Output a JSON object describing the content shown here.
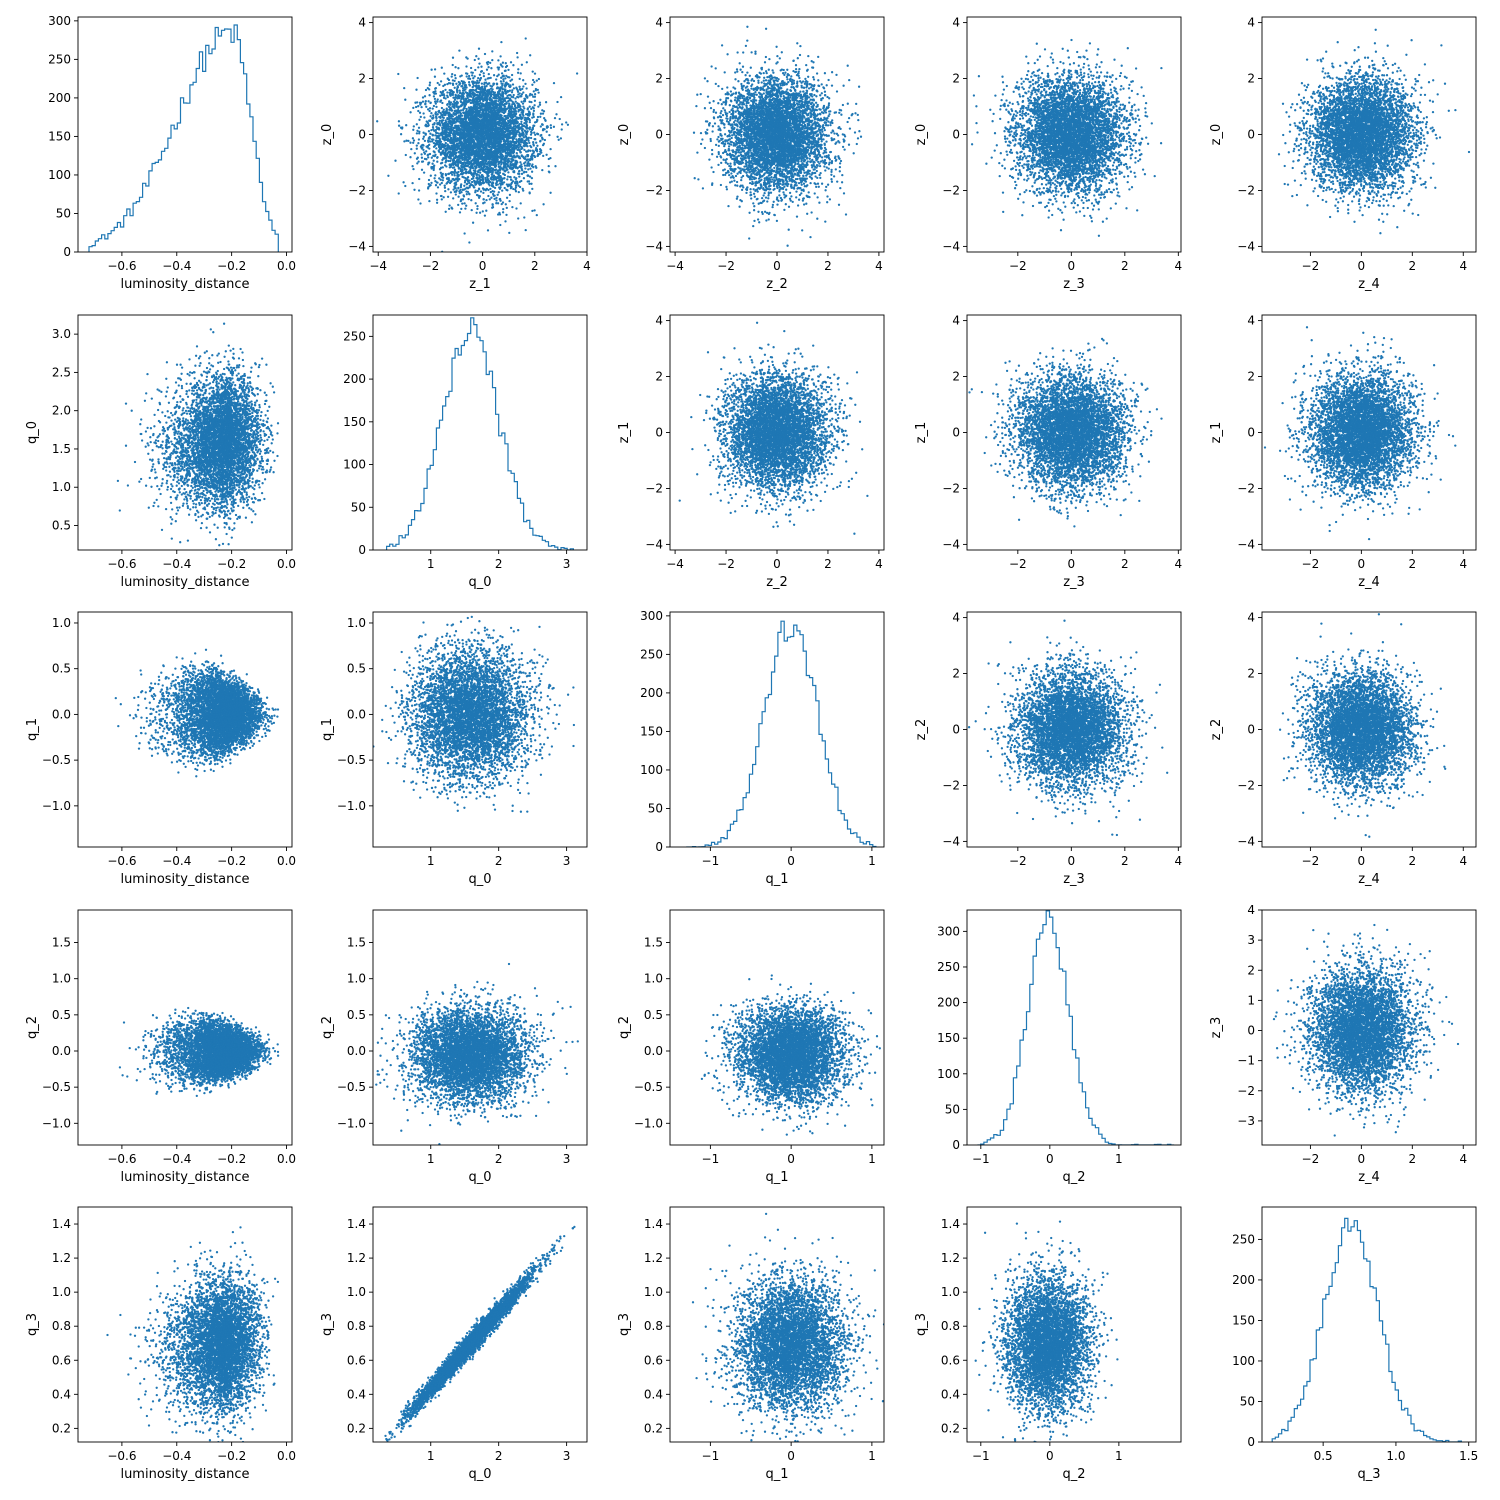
{
  "figure": {
    "type": "corner-pair-plot",
    "marker_color": "#1f77b4",
    "axes_color": "#000000",
    "background": "#ffffff"
  },
  "chart_data": [
    {
      "type": "histogram",
      "panel": "r0c0",
      "xlabel": "luminosity_distance",
      "ylabel": "",
      "xlim": [
        -0.76,
        0.02
      ],
      "ylim": [
        0,
        305
      ],
      "xticks": [
        -0.6,
        -0.4,
        -0.2,
        0.0
      ],
      "xtick_labels": [
        "−0.6",
        "−0.4",
        "−0.2",
        "0.0"
      ],
      "yticks": [
        0,
        50,
        100,
        150,
        200,
        250,
        300
      ],
      "ytick_labels": [
        "0",
        "50",
        "100",
        "150",
        "200",
        "250",
        "300"
      ],
      "dist": {
        "kind": "skewleft",
        "lo": -0.72,
        "hi": -0.03,
        "mode": -0.2,
        "peak": 285
      }
    },
    {
      "type": "scatter",
      "panel": "r0c1",
      "xlabel": "z_1",
      "ylabel": "z_0",
      "xlim": [
        -4.2,
        4.0
      ],
      "ylim": [
        -4.2,
        4.2
      ],
      "xticks": [
        -4,
        -2,
        0,
        2,
        4
      ],
      "xtick_labels": [
        "−4",
        "−2",
        "0",
        "2",
        "4"
      ],
      "yticks": [
        -4,
        -2,
        0,
        2,
        4
      ],
      "ytick_labels": [
        "−4",
        "−2",
        "0",
        "2",
        "4"
      ],
      "dist": {
        "kind": "gauss2d",
        "mx": 0,
        "my": 0,
        "sx": 1,
        "sy": 1
      }
    },
    {
      "type": "scatter",
      "panel": "r0c2",
      "xlabel": "z_2",
      "ylabel": "z_0",
      "xlim": [
        -4.2,
        4.2
      ],
      "ylim": [
        -4.2,
        4.2
      ],
      "xticks": [
        -4,
        -2,
        0,
        2,
        4
      ],
      "xtick_labels": [
        "−4",
        "−2",
        "0",
        "2",
        "4"
      ],
      "yticks": [
        -4,
        -2,
        0,
        2,
        4
      ],
      "ytick_labels": [
        "−4",
        "−2",
        "0",
        "2",
        "4"
      ],
      "dist": {
        "kind": "gauss2d",
        "mx": 0,
        "my": 0,
        "sx": 1,
        "sy": 1
      }
    },
    {
      "type": "scatter",
      "panel": "r0c3",
      "xlabel": "z_3",
      "ylabel": "z_0",
      "xlim": [
        -3.9,
        4.1
      ],
      "ylim": [
        -4.2,
        4.2
      ],
      "xticks": [
        -2,
        0,
        2,
        4
      ],
      "xtick_labels": [
        "−2",
        "0",
        "2",
        "4"
      ],
      "yticks": [
        -4,
        -2,
        0,
        2,
        4
      ],
      "ytick_labels": [
        "−4",
        "−2",
        "0",
        "2",
        "4"
      ],
      "dist": {
        "kind": "gauss2d",
        "mx": 0,
        "my": 0,
        "sx": 1,
        "sy": 1
      }
    },
    {
      "type": "scatter",
      "panel": "r0c4",
      "xlabel": "z_4",
      "ylabel": "z_0",
      "xlim": [
        -3.9,
        4.5
      ],
      "ylim": [
        -4.2,
        4.2
      ],
      "xticks": [
        -2,
        0,
        2,
        4
      ],
      "xtick_labels": [
        "−2",
        "0",
        "2",
        "4"
      ],
      "yticks": [
        -4,
        -2,
        0,
        2,
        4
      ],
      "ytick_labels": [
        "−4",
        "−2",
        "0",
        "2",
        "4"
      ],
      "dist": {
        "kind": "gauss2d",
        "mx": 0,
        "my": 0,
        "sx": 1,
        "sy": 1
      }
    },
    {
      "type": "scatter",
      "panel": "r1c0",
      "xlabel": "luminosity_distance",
      "ylabel": "q_0",
      "xlim": [
        -0.76,
        0.02
      ],
      "ylim": [
        0.18,
        3.25
      ],
      "xticks": [
        -0.6,
        -0.4,
        -0.2,
        0.0
      ],
      "xtick_labels": [
        "−0.6",
        "−0.4",
        "−0.2",
        "0.0"
      ],
      "yticks": [
        0.5,
        1.0,
        1.5,
        2.0,
        2.5,
        3.0
      ],
      "ytick_labels": [
        "0.5",
        "1.0",
        "1.5",
        "2.0",
        "2.5",
        "3.0"
      ],
      "dist": {
        "kind": "lumq0"
      }
    },
    {
      "type": "histogram",
      "panel": "r1c1",
      "xlabel": "q_0",
      "ylabel": "",
      "xlim": [
        0.15,
        3.3
      ],
      "ylim": [
        0,
        275
      ],
      "xticks": [
        1,
        2,
        3
      ],
      "xtick_labels": [
        "1",
        "2",
        "3"
      ],
      "yticks": [
        0,
        50,
        100,
        150,
        200,
        250
      ],
      "ytick_labels": [
        "0",
        "50",
        "100",
        "150",
        "200",
        "250"
      ],
      "dist": {
        "kind": "gauss",
        "lo": 0.35,
        "hi": 3.1,
        "mu": 1.58,
        "sigma": 0.42,
        "peak": 255
      }
    },
    {
      "type": "scatter",
      "panel": "r1c2",
      "xlabel": "z_2",
      "ylabel": "z_1",
      "xlim": [
        -4.2,
        4.2
      ],
      "ylim": [
        -4.2,
        4.2
      ],
      "xticks": [
        -4,
        -2,
        0,
        2,
        4
      ],
      "xtick_labels": [
        "−4",
        "−2",
        "0",
        "2",
        "4"
      ],
      "yticks": [
        -4,
        -2,
        0,
        2,
        4
      ],
      "ytick_labels": [
        "−4",
        "−2",
        "0",
        "2",
        "4"
      ],
      "dist": {
        "kind": "gauss2d",
        "mx": 0,
        "my": 0,
        "sx": 1,
        "sy": 1
      }
    },
    {
      "type": "scatter",
      "panel": "r1c3",
      "xlabel": "z_3",
      "ylabel": "z_1",
      "xlim": [
        -3.9,
        4.1
      ],
      "ylim": [
        -4.2,
        4.2
      ],
      "xticks": [
        -2,
        0,
        2,
        4
      ],
      "xtick_labels": [
        "−2",
        "0",
        "2",
        "4"
      ],
      "yticks": [
        -4,
        -2,
        0,
        2,
        4
      ],
      "ytick_labels": [
        "−4",
        "−2",
        "0",
        "2",
        "4"
      ],
      "dist": {
        "kind": "gauss2d",
        "mx": 0,
        "my": 0,
        "sx": 1,
        "sy": 1
      }
    },
    {
      "type": "scatter",
      "panel": "r1c4",
      "xlabel": "z_4",
      "ylabel": "z_1",
      "xlim": [
        -3.9,
        4.5
      ],
      "ylim": [
        -4.2,
        4.2
      ],
      "xticks": [
        -2,
        0,
        2,
        4
      ],
      "xtick_labels": [
        "−2",
        "0",
        "2",
        "4"
      ],
      "yticks": [
        -4,
        -2,
        0,
        2,
        4
      ],
      "ytick_labels": [
        "−4",
        "−2",
        "0",
        "2",
        "4"
      ],
      "dist": {
        "kind": "gauss2d",
        "mx": 0,
        "my": 0,
        "sx": 1,
        "sy": 1
      }
    },
    {
      "type": "scatter",
      "panel": "r2c0",
      "xlabel": "luminosity_distance",
      "ylabel": "q_1",
      "xlim": [
        -0.76,
        0.02
      ],
      "ylim": [
        -1.45,
        1.12
      ],
      "xticks": [
        -0.6,
        -0.4,
        -0.2,
        0.0
      ],
      "xtick_labels": [
        "−0.6",
        "−0.4",
        "−0.2",
        "0.0"
      ],
      "yticks": [
        -1.0,
        -0.5,
        0.0,
        0.5,
        1.0
      ],
      "ytick_labels": [
        "−1.0",
        "−0.5",
        "0.0",
        "0.5",
        "1.0"
      ],
      "dist": {
        "kind": "lumcone",
        "ampl": 0.55,
        "spread": 0.9
      }
    },
    {
      "type": "scatter",
      "panel": "r2c1",
      "xlabel": "q_0",
      "ylabel": "q_1",
      "xlim": [
        0.15,
        3.3
      ],
      "ylim": [
        -1.45,
        1.12
      ],
      "xticks": [
        1,
        2,
        3
      ],
      "xtick_labels": [
        "1",
        "2",
        "3"
      ],
      "yticks": [
        -1.0,
        -0.5,
        0.0,
        0.5,
        1.0
      ],
      "ytick_labels": [
        "−1.0",
        "−0.5",
        "0.0",
        "0.5",
        "1.0"
      ],
      "dist": {
        "kind": "gauss2d",
        "mx": 1.58,
        "my": 0.0,
        "sx": 0.42,
        "sy": 0.35
      }
    },
    {
      "type": "histogram",
      "panel": "r2c2",
      "xlabel": "q_1",
      "ylabel": "",
      "xlim": [
        -1.5,
        1.15
      ],
      "ylim": [
        0,
        305
      ],
      "xticks": [
        -1,
        0,
        1
      ],
      "xtick_labels": [
        "−1",
        "0",
        "1"
      ],
      "yticks": [
        0,
        50,
        100,
        150,
        200,
        250,
        300
      ],
      "ytick_labels": [
        "0",
        "50",
        "100",
        "150",
        "200",
        "250",
        "300"
      ],
      "dist": {
        "kind": "gauss",
        "lo": -1.3,
        "hi": 1.05,
        "mu": 0.0,
        "sigma": 0.33,
        "peak": 290
      }
    },
    {
      "type": "scatter",
      "panel": "r2c3",
      "xlabel": "z_3",
      "ylabel": "z_2",
      "xlim": [
        -3.9,
        4.1
      ],
      "ylim": [
        -4.2,
        4.2
      ],
      "xticks": [
        -2,
        0,
        2,
        4
      ],
      "xtick_labels": [
        "−2",
        "0",
        "2",
        "4"
      ],
      "yticks": [
        -4,
        -2,
        0,
        2,
        4
      ],
      "ytick_labels": [
        "−4",
        "−2",
        "0",
        "2",
        "4"
      ],
      "dist": {
        "kind": "gauss2d",
        "mx": 0,
        "my": 0,
        "sx": 1,
        "sy": 1
      }
    },
    {
      "type": "scatter",
      "panel": "r2c4",
      "xlabel": "z_4",
      "ylabel": "z_2",
      "xlim": [
        -3.9,
        4.5
      ],
      "ylim": [
        -4.2,
        4.2
      ],
      "xticks": [
        -2,
        0,
        2,
        4
      ],
      "xtick_labels": [
        "−2",
        "0",
        "2",
        "4"
      ],
      "yticks": [
        -4,
        -2,
        0,
        2,
        4
      ],
      "ytick_labels": [
        "−4",
        "−2",
        "0",
        "2",
        "4"
      ],
      "dist": {
        "kind": "gauss2d",
        "mx": 0,
        "my": 0,
        "sx": 1,
        "sy": 1
      }
    },
    {
      "type": "scatter",
      "panel": "r3c0",
      "xlabel": "luminosity_distance",
      "ylabel": "q_2",
      "xlim": [
        -0.76,
        0.02
      ],
      "ylim": [
        -1.3,
        1.95
      ],
      "xticks": [
        -0.6,
        -0.4,
        -0.2,
        0.0
      ],
      "xtick_labels": [
        "−0.6",
        "−0.4",
        "−0.2",
        "0.0"
      ],
      "yticks": [
        -1.0,
        -0.5,
        0.0,
        0.5,
        1.0,
        1.5
      ],
      "ytick_labels": [
        "−1.0",
        "−0.5",
        "0.0",
        "0.5",
        "1.0",
        "1.5"
      ],
      "dist": {
        "kind": "lumcone",
        "ampl": 0.5,
        "spread": 0.85
      }
    },
    {
      "type": "scatter",
      "panel": "r3c1",
      "xlabel": "q_0",
      "ylabel": "q_2",
      "xlim": [
        0.15,
        3.3
      ],
      "ylim": [
        -1.3,
        1.95
      ],
      "xticks": [
        1,
        2,
        3
      ],
      "xtick_labels": [
        "1",
        "2",
        "3"
      ],
      "yticks": [
        -1.0,
        -0.5,
        0.0,
        0.5,
        1.0,
        1.5
      ],
      "ytick_labels": [
        "−1.0",
        "−0.5",
        "0.0",
        "0.5",
        "1.0",
        "1.5"
      ],
      "dist": {
        "kind": "gauss2d",
        "mx": 1.58,
        "my": -0.05,
        "sx": 0.42,
        "sy": 0.32
      }
    },
    {
      "type": "scatter",
      "panel": "r3c2",
      "xlabel": "q_1",
      "ylabel": "q_2",
      "xlim": [
        -1.5,
        1.15
      ],
      "ylim": [
        -1.3,
        1.95
      ],
      "xticks": [
        -1,
        0,
        1
      ],
      "xtick_labels": [
        "−1",
        "0",
        "1"
      ],
      "yticks": [
        -1.0,
        -0.5,
        0.0,
        0.5,
        1.0,
        1.5
      ],
      "ytick_labels": [
        "−1.0",
        "−0.5",
        "0.0",
        "0.5",
        "1.0",
        "1.5"
      ],
      "dist": {
        "kind": "gauss2d",
        "mx": 0.0,
        "my": -0.05,
        "sx": 0.33,
        "sy": 0.32
      }
    },
    {
      "type": "histogram",
      "panel": "r3c3",
      "xlabel": "q_2",
      "ylabel": "",
      "xlim": [
        -1.2,
        1.9
      ],
      "ylim": [
        0,
        330
      ],
      "xticks": [
        -1,
        0,
        1
      ],
      "xtick_labels": [
        "−1",
        "0",
        "1"
      ],
      "yticks": [
        0,
        50,
        100,
        150,
        200,
        250,
        300
      ],
      "ytick_labels": [
        "0",
        "50",
        "100",
        "150",
        "200",
        "250",
        "300"
      ],
      "dist": {
        "kind": "gauss",
        "lo": -1.05,
        "hi": 1.8,
        "mu": -0.02,
        "sigma": 0.3,
        "peak": 312
      }
    },
    {
      "type": "scatter",
      "panel": "r3c4",
      "xlabel": "z_4",
      "ylabel": "z_3",
      "xlim": [
        -3.9,
        4.5
      ],
      "ylim": [
        -3.8,
        4.0
      ],
      "xticks": [
        -2,
        0,
        2,
        4
      ],
      "xtick_labels": [
        "−2",
        "0",
        "2",
        "4"
      ],
      "yticks": [
        -3,
        -2,
        -1,
        0,
        1,
        2,
        3,
        4
      ],
      "ytick_labels": [
        "−3",
        "−2",
        "−1",
        "0",
        "1",
        "2",
        "3",
        "4"
      ],
      "dist": {
        "kind": "gauss2d",
        "mx": 0,
        "my": 0,
        "sx": 1,
        "sy": 1
      }
    },
    {
      "type": "scatter",
      "panel": "r4c0",
      "xlabel": "luminosity_distance",
      "ylabel": "q_3",
      "xlim": [
        -0.76,
        0.02
      ],
      "ylim": [
        0.12,
        1.5
      ],
      "xticks": [
        -0.6,
        -0.4,
        -0.2,
        0.0
      ],
      "xtick_labels": [
        "−0.6",
        "−0.4",
        "−0.2",
        "0.0"
      ],
      "yticks": [
        0.2,
        0.4,
        0.6,
        0.8,
        1.0,
        1.2,
        1.4
      ],
      "ytick_labels": [
        "0.2",
        "0.4",
        "0.6",
        "0.8",
        "1.0",
        "1.2",
        "1.4"
      ],
      "dist": {
        "kind": "lumq3"
      }
    },
    {
      "type": "scatter",
      "panel": "r4c1",
      "xlabel": "q_0",
      "ylabel": "q_3",
      "xlim": [
        0.15,
        3.3
      ],
      "ylim": [
        0.12,
        1.5
      ],
      "xticks": [
        1,
        2,
        3
      ],
      "xtick_labels": [
        "1",
        "2",
        "3"
      ],
      "yticks": [
        0.2,
        0.4,
        0.6,
        0.8,
        1.0,
        1.2,
        1.4
      ],
      "ytick_labels": [
        "0.2",
        "0.4",
        "0.6",
        "0.8",
        "1.0",
        "1.2",
        "1.4"
      ],
      "dist": {
        "kind": "linear",
        "mx": 1.58,
        "sx": 0.42,
        "slope": 0.45,
        "icpt": -0.02,
        "noise": 0.03
      }
    },
    {
      "type": "scatter",
      "panel": "r4c2",
      "xlabel": "q_1",
      "ylabel": "q_3",
      "xlim": [
        -1.5,
        1.15
      ],
      "ylim": [
        0.12,
        1.5
      ],
      "xticks": [
        -1,
        0,
        1
      ],
      "xtick_labels": [
        "−1",
        "0",
        "1"
      ],
      "yticks": [
        0.2,
        0.4,
        0.6,
        0.8,
        1.0,
        1.2,
        1.4
      ],
      "ytick_labels": [
        "0.2",
        "0.4",
        "0.6",
        "0.8",
        "1.0",
        "1.2",
        "1.4"
      ],
      "dist": {
        "kind": "gauss2d",
        "mx": 0.0,
        "my": 0.69,
        "sx": 0.33,
        "sy": 0.19
      }
    },
    {
      "type": "scatter",
      "panel": "r4c3",
      "xlabel": "q_2",
      "ylabel": "q_3",
      "xlim": [
        -1.2,
        1.9
      ],
      "ylim": [
        0.12,
        1.5
      ],
      "xticks": [
        -1,
        0,
        1
      ],
      "xtick_labels": [
        "−1",
        "0",
        "1"
      ],
      "yticks": [
        0.2,
        0.4,
        0.6,
        0.8,
        1.0,
        1.2,
        1.4
      ],
      "ytick_labels": [
        "0.2",
        "0.4",
        "0.6",
        "0.8",
        "1.0",
        "1.2",
        "1.4"
      ],
      "dist": {
        "kind": "gauss2d",
        "mx": -0.02,
        "my": 0.69,
        "sx": 0.3,
        "sy": 0.19
      }
    },
    {
      "type": "histogram",
      "panel": "r4c4",
      "xlabel": "q_3",
      "ylabel": "",
      "xlim": [
        0.08,
        1.55
      ],
      "ylim": [
        0,
        290
      ],
      "xticks": [
        0.5,
        1.0,
        1.5
      ],
      "xtick_labels": [
        "0.5",
        "1.0",
        "1.5"
      ],
      "yticks": [
        0,
        50,
        100,
        150,
        200,
        250
      ],
      "ytick_labels": [
        "0",
        "50",
        "100",
        "150",
        "200",
        "250"
      ],
      "dist": {
        "kind": "gauss",
        "lo": 0.15,
        "hi": 1.45,
        "mu": 0.69,
        "sigma": 0.19,
        "peak": 265
      }
    }
  ]
}
